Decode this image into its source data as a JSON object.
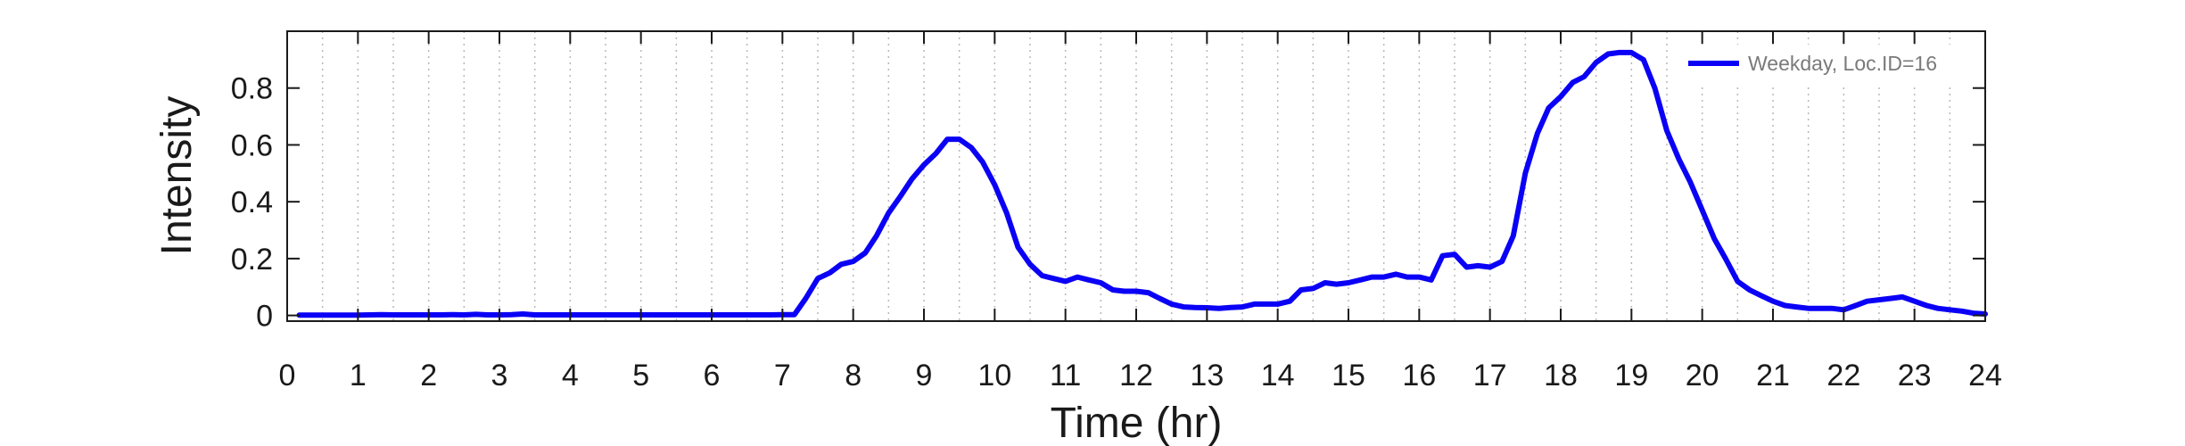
{
  "chart_data": {
    "type": "line",
    "title": "",
    "xlabel": "Time (hr)",
    "ylabel": "Intensity",
    "xlim": [
      0,
      24
    ],
    "ylim": [
      -0.02,
      1.0
    ],
    "xticks": [
      0,
      1,
      2,
      3,
      4,
      5,
      6,
      7,
      8,
      9,
      10,
      11,
      12,
      13,
      14,
      15,
      16,
      17,
      18,
      19,
      20,
      21,
      22,
      23,
      24
    ],
    "xtick_labels": [
      "0",
      "1",
      "2",
      "3",
      "4",
      "5",
      "6",
      "7",
      "8",
      "9",
      "10",
      "11",
      "12",
      "13",
      "14",
      "15",
      "16",
      "17",
      "18",
      "19",
      "20",
      "21",
      "22",
      "23",
      "24"
    ],
    "yticks": [
      0,
      0.2,
      0.4,
      0.6,
      0.8
    ],
    "ytick_labels": [
      "0",
      "0.2",
      "0.4",
      "0.6",
      "0.8"
    ],
    "grid": "vertical dotted gridlines every 0.5 hr",
    "legend_position": "top-right",
    "colors": {
      "series": "#0a00f5",
      "axis": "#1a1a1a",
      "grid": "#b8b8b8"
    },
    "series": [
      {
        "name": "Weekday, Loc.ID=16",
        "x": [
          0.17,
          0.33,
          0.5,
          0.67,
          0.83,
          1.0,
          1.17,
          1.33,
          1.5,
          1.67,
          1.83,
          2.0,
          2.17,
          2.33,
          2.5,
          2.67,
          2.83,
          3.0,
          3.17,
          3.33,
          3.5,
          3.67,
          3.83,
          4.0,
          4.17,
          4.33,
          4.5,
          4.67,
          4.83,
          5.0,
          5.17,
          5.33,
          5.5,
          5.67,
          5.83,
          6.0,
          6.17,
          6.33,
          6.5,
          6.67,
          6.83,
          7.0,
          7.17,
          7.33,
          7.5,
          7.67,
          7.83,
          8.0,
          8.17,
          8.33,
          8.5,
          8.67,
          8.83,
          9.0,
          9.17,
          9.33,
          9.5,
          9.67,
          9.83,
          10.0,
          10.17,
          10.33,
          10.5,
          10.67,
          10.83,
          11.0,
          11.17,
          11.33,
          11.5,
          11.67,
          11.83,
          12.0,
          12.17,
          12.33,
          12.5,
          12.67,
          12.83,
          13.0,
          13.17,
          13.33,
          13.5,
          13.67,
          13.83,
          14.0,
          14.17,
          14.33,
          14.5,
          14.67,
          14.83,
          15.0,
          15.17,
          15.33,
          15.5,
          15.67,
          15.83,
          16.0,
          16.17,
          16.33,
          16.5,
          16.67,
          16.83,
          17.0,
          17.17,
          17.33,
          17.5,
          17.67,
          17.83,
          18.0,
          18.17,
          18.33,
          18.5,
          18.67,
          18.83,
          19.0,
          19.17,
          19.33,
          19.5,
          19.67,
          19.83,
          20.0,
          20.17,
          20.33,
          20.5,
          20.67,
          20.83,
          21.0,
          21.17,
          21.33,
          21.5,
          21.67,
          21.83,
          22.0,
          22.17,
          22.33,
          22.5,
          22.67,
          22.83,
          23.0,
          23.17,
          23.33,
          23.5,
          23.67,
          23.83,
          24.0
        ],
        "y": [
          0.001,
          0.001,
          0.001,
          0.001,
          0.001,
          0.001,
          0.002,
          0.003,
          0.002,
          0.002,
          0.002,
          0.002,
          0.002,
          0.003,
          0.002,
          0.004,
          0.002,
          0.002,
          0.003,
          0.005,
          0.002,
          0.002,
          0.002,
          0.002,
          0.002,
          0.002,
          0.002,
          0.002,
          0.002,
          0.002,
          0.002,
          0.002,
          0.002,
          0.002,
          0.002,
          0.002,
          0.002,
          0.002,
          0.002,
          0.002,
          0.002,
          0.003,
          0.003,
          0.06,
          0.13,
          0.15,
          0.18,
          0.19,
          0.22,
          0.28,
          0.36,
          0.42,
          0.48,
          0.53,
          0.57,
          0.62,
          0.62,
          0.59,
          0.54,
          0.46,
          0.36,
          0.24,
          0.18,
          0.14,
          0.13,
          0.12,
          0.135,
          0.125,
          0.115,
          0.09,
          0.085,
          0.085,
          0.08,
          0.06,
          0.04,
          0.03,
          0.028,
          0.027,
          0.025,
          0.028,
          0.03,
          0.04,
          0.04,
          0.04,
          0.05,
          0.09,
          0.095,
          0.115,
          0.11,
          0.115,
          0.125,
          0.135,
          0.135,
          0.145,
          0.135,
          0.135,
          0.125,
          0.21,
          0.215,
          0.17,
          0.175,
          0.17,
          0.19,
          0.28,
          0.5,
          0.64,
          0.73,
          0.77,
          0.82,
          0.84,
          0.89,
          0.92,
          0.925,
          0.925,
          0.9,
          0.8,
          0.65,
          0.55,
          0.47,
          0.37,
          0.27,
          0.2,
          0.12,
          0.09,
          0.07,
          0.05,
          0.035,
          0.03,
          0.025,
          0.025,
          0.025,
          0.02,
          0.035,
          0.05,
          0.055,
          0.06,
          0.065,
          0.05,
          0.035,
          0.025,
          0.02,
          0.015,
          0.008,
          0.005
        ]
      }
    ]
  }
}
